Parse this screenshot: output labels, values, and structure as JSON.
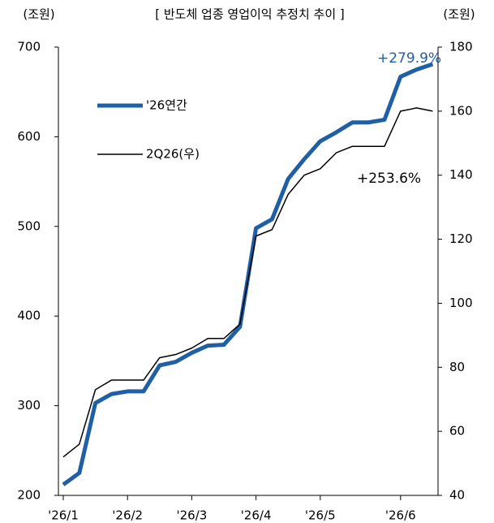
{
  "chart_data": {
    "type": "line",
    "title": "[ 반도체 업종 영업이익 추정치 추이 ]",
    "ylabel": "(조원)",
    "y2label": "(조원)",
    "categories": [
      "'26/1",
      null,
      null,
      null,
      "'26/2",
      null,
      null,
      null,
      "'26/3",
      null,
      null,
      null,
      "'26/4",
      null,
      null,
      null,
      "'26/5",
      null,
      null,
      null,
      null,
      "'26/6",
      null,
      null
    ],
    "series": [
      {
        "name": "'26연간",
        "color": "#1f5fa6",
        "axis": "y",
        "values": [
          212,
          225,
          303,
          313,
          316,
          316,
          345,
          349,
          359,
          367,
          368,
          388,
          498,
          508,
          553,
          575,
          595,
          605,
          616,
          616,
          619,
          667,
          675,
          681
        ]
      },
      {
        "name": "2Q26(우)",
        "color": "#000000",
        "axis": "y2",
        "values": [
          52,
          56,
          73,
          76,
          76,
          76,
          83,
          84,
          86,
          89,
          89,
          93.5,
          121,
          123,
          134,
          140,
          142,
          147,
          149,
          149,
          149,
          160,
          161,
          160
        ]
      }
    ],
    "annotations": [
      "+279.9%",
      "+253.6%"
    ],
    "ylim": [
      200,
      700
    ],
    "yticks": [
      200,
      300,
      400,
      500,
      600,
      700
    ],
    "y2lim": [
      40,
      180
    ],
    "y2ticks": [
      40,
      60,
      80,
      100,
      120,
      140,
      160,
      180
    ]
  }
}
